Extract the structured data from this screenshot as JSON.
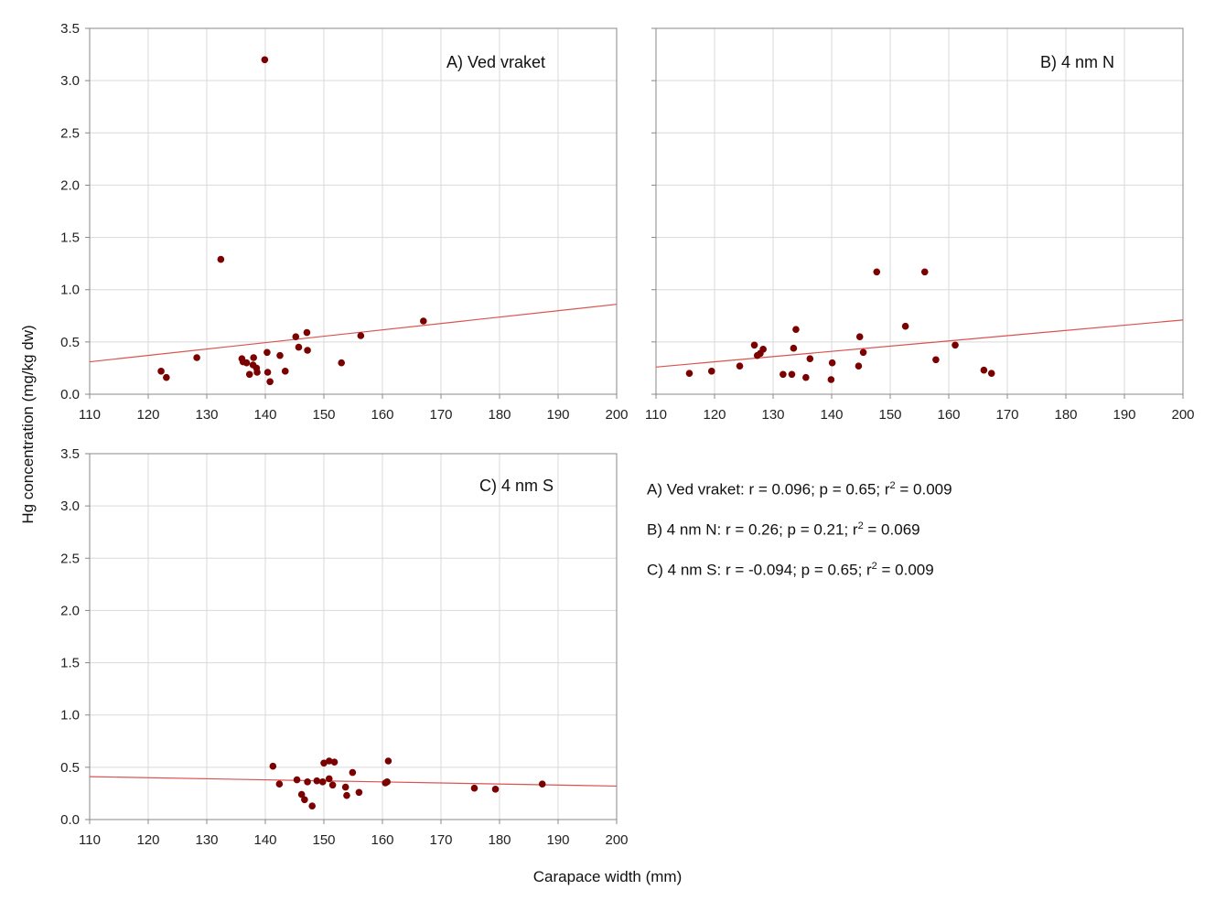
{
  "figure": {
    "xlabel": "Carapace width (mm)",
    "ylabel": "Hg concentration (mg/kg dw)",
    "stats": [
      {
        "text": "A) Ved vraket:  r =  0.096; p = 0.65; r",
        "sup": "2",
        "tail": " = 0.009"
      },
      {
        "text": "B) 4 nm N:  r =  0.26; p = 0.21; r",
        "sup": "2",
        "tail": " = 0.069"
      },
      {
        "text": "C) 4 nm S:  r = -0.094; p = 0.65; r",
        "sup": "2",
        "tail": " = 0.009"
      }
    ],
    "colors": {
      "points": "#7b0000",
      "trend": "#d9534f",
      "grid": "#d9d9d9",
      "axis": "#888888"
    }
  },
  "chart_data": [
    {
      "type": "scatter",
      "label": "A) Ved vraket",
      "xlim": [
        110,
        200
      ],
      "ylim": [
        0,
        3.5
      ],
      "xticks": [
        "110",
        "120",
        "130",
        "140",
        "150",
        "160",
        "170",
        "180",
        "190",
        "200"
      ],
      "yticks": [
        "0.0",
        "0.5",
        "1.0",
        "1.5",
        "2.0",
        "2.5",
        "3.0",
        "3.5"
      ],
      "trendline": [
        [
          110,
          0.31
        ],
        [
          200,
          0.86
        ]
      ],
      "points": [
        [
          122.2,
          0.22
        ],
        [
          123.1,
          0.16
        ],
        [
          128.3,
          0.35
        ],
        [
          132.4,
          1.29
        ],
        [
          136.0,
          0.34
        ],
        [
          136.2,
          0.31
        ],
        [
          136.8,
          0.3
        ],
        [
          137.3,
          0.19
        ],
        [
          137.9,
          0.28
        ],
        [
          138.0,
          0.35
        ],
        [
          138.5,
          0.25
        ],
        [
          138.6,
          0.21
        ],
        [
          139.9,
          3.2
        ],
        [
          140.3,
          0.4
        ],
        [
          140.4,
          0.21
        ],
        [
          140.8,
          0.12
        ],
        [
          142.5,
          0.37
        ],
        [
          143.4,
          0.22
        ],
        [
          145.2,
          0.55
        ],
        [
          145.7,
          0.45
        ],
        [
          147.1,
          0.59
        ],
        [
          147.2,
          0.42
        ],
        [
          153.0,
          0.3
        ],
        [
          156.3,
          0.56
        ],
        [
          167.0,
          0.7
        ]
      ]
    },
    {
      "type": "scatter",
      "label": "B) 4 nm N",
      "xlim": [
        110,
        200
      ],
      "ylim": [
        0,
        3.5
      ],
      "xticks": [
        "110",
        "120",
        "130",
        "140",
        "150",
        "160",
        "170",
        "180",
        "190",
        "200"
      ],
      "yticks": [],
      "trendline": [
        [
          110,
          0.26
        ],
        [
          200,
          0.71
        ]
      ],
      "points": [
        [
          115.7,
          0.2
        ],
        [
          119.5,
          0.22
        ],
        [
          124.3,
          0.27
        ],
        [
          126.8,
          0.47
        ],
        [
          127.3,
          0.37
        ],
        [
          127.8,
          0.39
        ],
        [
          128.3,
          0.43
        ],
        [
          131.7,
          0.19
        ],
        [
          133.2,
          0.19
        ],
        [
          133.5,
          0.44
        ],
        [
          133.9,
          0.62
        ],
        [
          135.6,
          0.16
        ],
        [
          136.3,
          0.34
        ],
        [
          139.9,
          0.14
        ],
        [
          140.1,
          0.3
        ],
        [
          144.6,
          0.27
        ],
        [
          144.8,
          0.55
        ],
        [
          145.4,
          0.4
        ],
        [
          147.7,
          1.17
        ],
        [
          152.6,
          0.65
        ],
        [
          155.9,
          1.17
        ],
        [
          157.8,
          0.33
        ],
        [
          161.1,
          0.47
        ],
        [
          166.0,
          0.23
        ],
        [
          167.3,
          0.2
        ]
      ]
    },
    {
      "type": "scatter",
      "label": "C) 4 nm S",
      "xlim": [
        110,
        200
      ],
      "ylim": [
        0,
        3.5
      ],
      "xticks": [
        "110",
        "120",
        "130",
        "140",
        "150",
        "160",
        "170",
        "180",
        "190",
        "200"
      ],
      "yticks": [
        "0.0",
        "0.5",
        "1.0",
        "1.5",
        "2.0",
        "2.5",
        "3.0",
        "3.5"
      ],
      "trendline": [
        [
          110,
          0.41
        ],
        [
          200,
          0.32
        ]
      ],
      "points": [
        [
          141.3,
          0.51
        ],
        [
          142.4,
          0.34
        ],
        [
          145.4,
          0.38
        ],
        [
          146.2,
          0.24
        ],
        [
          146.7,
          0.19
        ],
        [
          147.2,
          0.36
        ],
        [
          148.0,
          0.13
        ],
        [
          148.8,
          0.37
        ],
        [
          149.8,
          0.36
        ],
        [
          150.0,
          0.54
        ],
        [
          150.9,
          0.56
        ],
        [
          150.9,
          0.39
        ],
        [
          151.5,
          0.33
        ],
        [
          151.8,
          0.55
        ],
        [
          153.7,
          0.31
        ],
        [
          153.9,
          0.23
        ],
        [
          154.9,
          0.45
        ],
        [
          156.0,
          0.26
        ],
        [
          160.5,
          0.35
        ],
        [
          160.8,
          0.36
        ],
        [
          161.0,
          0.56
        ],
        [
          175.7,
          0.3
        ],
        [
          179.3,
          0.29
        ],
        [
          187.3,
          0.34
        ]
      ]
    }
  ]
}
